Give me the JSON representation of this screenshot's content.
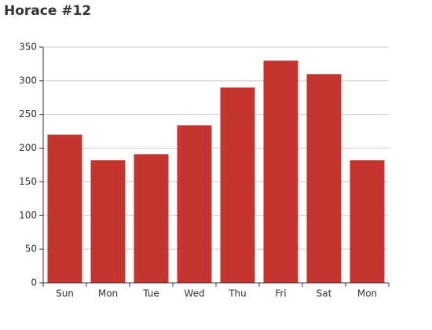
{
  "chart_data": {
    "type": "bar",
    "title": "Horace #12",
    "categories": [
      "Sun",
      "Mon",
      "Tue",
      "Wed",
      "Thu",
      "Fri",
      "Sat",
      "Mon"
    ],
    "values": [
      220,
      182,
      191,
      234,
      290,
      330,
      310,
      182
    ],
    "color": "#c23531",
    "ylim": [
      0,
      350
    ],
    "yticks": [
      0,
      50,
      100,
      150,
      200,
      250,
      300,
      350
    ],
    "grid": true
  }
}
